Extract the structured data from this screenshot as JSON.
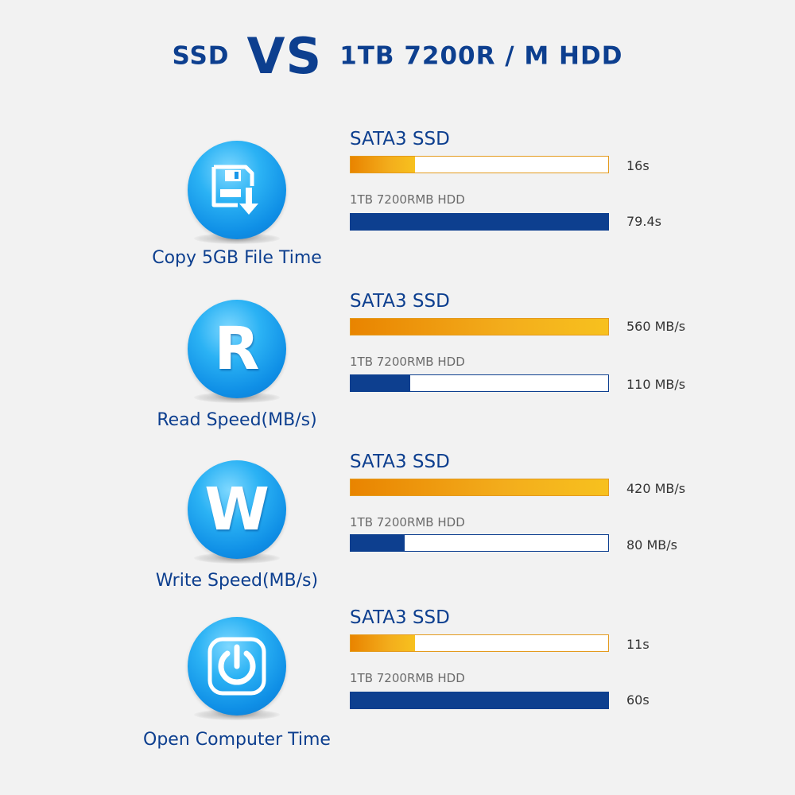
{
  "header": {
    "left": "SSD",
    "vs": "VS",
    "right": "1TB 7200R / M HDD"
  },
  "colors": {
    "title_blue": "#0d3f8f",
    "ssd_orange": "#f0a010",
    "hdd_blue": "#0d3f8f",
    "icon_blue": "#1ea0ee"
  },
  "chart_data": [
    {
      "type": "bar",
      "title": "Copy 5GB File Time",
      "icon": "floppy-download-icon",
      "series": [
        {
          "name": "SATA3 SSD",
          "value": 16,
          "value_label": "16s",
          "fill_fraction": 0.25
        },
        {
          "name": "1TB 7200RMB HDD",
          "value": 79.4,
          "value_label": "79.4s",
          "fill_fraction": 1.0
        }
      ]
    },
    {
      "type": "bar",
      "title": "Read Speed(MB/s)",
      "icon": "letter-r-icon",
      "icon_text": "R",
      "series": [
        {
          "name": "SATA3 SSD",
          "value": 560,
          "value_label": "560 MB/s",
          "fill_fraction": 1.0
        },
        {
          "name": "1TB 7200RMB HDD",
          "value": 110,
          "value_label": "110 MB/s",
          "fill_fraction": 0.23
        }
      ]
    },
    {
      "type": "bar",
      "title": "Write Speed(MB/s)",
      "icon": "letter-w-icon",
      "icon_text": "W",
      "series": [
        {
          "name": "SATA3 SSD",
          "value": 420,
          "value_label": "420 MB/s",
          "fill_fraction": 1.0
        },
        {
          "name": "1TB 7200RMB HDD",
          "value": 80,
          "value_label": "80 MB/s",
          "fill_fraction": 0.21
        }
      ]
    },
    {
      "type": "bar",
      "title": "Open Computer Time",
      "icon": "power-icon",
      "series": [
        {
          "name": "SATA3 SSD",
          "value": 11,
          "value_label": "11s",
          "fill_fraction": 0.25
        },
        {
          "name": "1TB 7200RMB HDD",
          "value": 60,
          "value_label": "60s",
          "fill_fraction": 1.0
        }
      ]
    }
  ]
}
